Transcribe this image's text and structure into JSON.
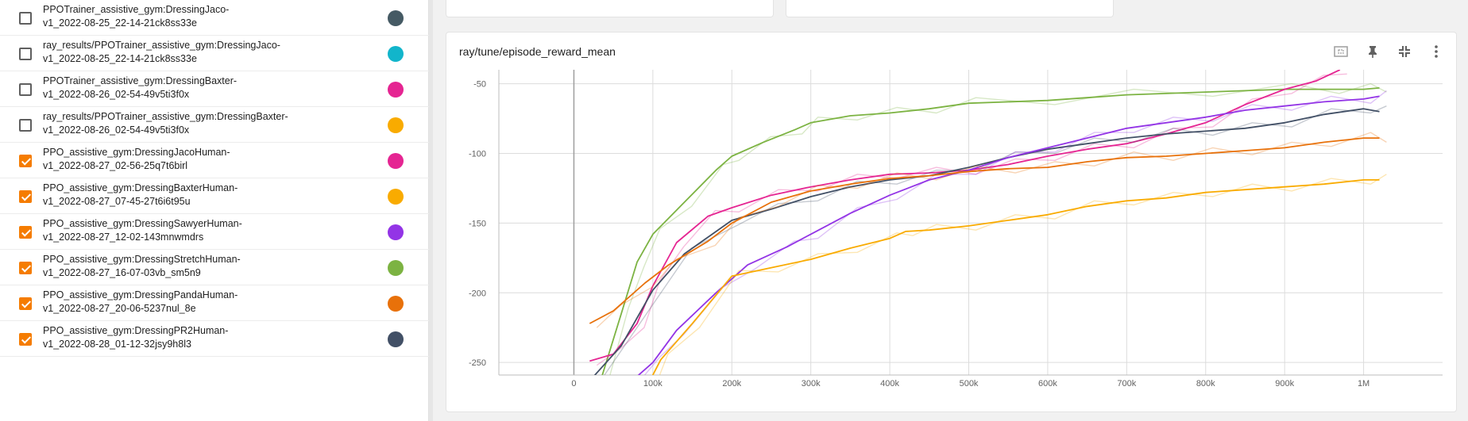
{
  "sidebar": {
    "runs": [
      {
        "name": "PPOTrainer_assistive_gym:DressingJaco-v1_2022-08-25_22-14-21ck8ss33e",
        "line1": "PPOTrainer_assistive_gym:DressingJaco-",
        "line2": "v1_2022-08-25_22-14-21ck8ss33e",
        "checked": false,
        "color": "#455a64"
      },
      {
        "name": "ray_results/PPOTrainer_assistive_gym:DressingJaco-v1_2022-08-25_22-14-21ck8ss33e",
        "line1": "ray_results/PPOTrainer_assistive_gym:DressingJaco-",
        "line2": "v1_2022-08-25_22-14-21ck8ss33e",
        "checked": false,
        "color": "#12b5cb"
      },
      {
        "name": "PPOTrainer_assistive_gym:DressingBaxter-v1_2022-08-26_02-54-49v5ti3f0x",
        "line1": "PPOTrainer_assistive_gym:DressingBaxter-",
        "line2": "v1_2022-08-26_02-54-49v5ti3f0x",
        "checked": false,
        "color": "#e52592"
      },
      {
        "name": "ray_results/PPOTrainer_assistive_gym:DressingBaxter-v1_2022-08-26_02-54-49v5ti3f0x",
        "line1": "ray_results/PPOTrainer_assistive_gym:DressingBaxter-",
        "line2": "v1_2022-08-26_02-54-49v5ti3f0x",
        "checked": false,
        "color": "#f9ab00"
      },
      {
        "name": "PPO_assistive_gym:DressingJacoHuman-v1_2022-08-27_02-56-25q7t6birl",
        "line1": "PPO_assistive_gym:DressingJacoHuman-",
        "line2": "v1_2022-08-27_02-56-25q7t6birl",
        "checked": true,
        "color": "#e52592"
      },
      {
        "name": "PPO_assistive_gym:DressingBaxterHuman-v1_2022-08-27_07-45-27t6i6t95u",
        "line1": "PPO_assistive_gym:DressingBaxterHuman-",
        "line2": "v1_2022-08-27_07-45-27t6i6t95u",
        "checked": true,
        "color": "#f9ab00"
      },
      {
        "name": "PPO_assistive_gym:DressingSawyerHuman-v1_2022-08-27_12-02-143mnwmdrs",
        "line1": "PPO_assistive_gym:DressingSawyerHuman-",
        "line2": "v1_2022-08-27_12-02-143mnwmdrs",
        "checked": true,
        "color": "#9334e6"
      },
      {
        "name": "PPO_assistive_gym:DressingStretchHuman-v1_2022-08-27_16-07-03vb_sm5n9",
        "line1": "PPO_assistive_gym:DressingStretchHuman-",
        "line2": "v1_2022-08-27_16-07-03vb_sm5n9",
        "checked": true,
        "color": "#7cb342"
      },
      {
        "name": "PPO_assistive_gym:DressingPandaHuman-v1_2022-08-27_20-06-5237nul_8e",
        "line1": "PPO_assistive_gym:DressingPandaHuman-",
        "line2": "v1_2022-08-27_20-06-5237nul_8e",
        "checked": true,
        "color": "#e8710a"
      },
      {
        "name": "PPO_assistive_gym:DressingPR2Human-v1_2022-08-28_01-12-32jsy9h8l3",
        "line1": "PPO_assistive_gym:DressingPR2Human-",
        "line2": "v1_2022-08-28_01-12-32jsy9h8l3",
        "checked": true,
        "color": "#425066"
      }
    ]
  },
  "card": {
    "title": "ray/tune/episode_reward_mean",
    "toolbar": {
      "fit_icon": "fit-domain-icon",
      "pin_icon": "pin-icon",
      "collapse_icon": "collapse-icon",
      "menu_icon": "more-vert-icon"
    }
  },
  "chart_data": {
    "type": "line",
    "title": "ray/tune/episode_reward_mean",
    "xlabel": "",
    "ylabel": "",
    "x_ticks": [
      0,
      100000,
      200000,
      300000,
      400000,
      500000,
      600000,
      700000,
      800000,
      900000,
      1000000
    ],
    "x_tick_labels": [
      "0",
      "100k",
      "200k",
      "300k",
      "400k",
      "500k",
      "600k",
      "700k",
      "800k",
      "900k",
      "1M"
    ],
    "y_ticks": [
      -250,
      -200,
      -150,
      -100,
      -50
    ],
    "y_tick_labels": [
      "-250",
      "-200",
      "-150",
      "-100",
      "-50"
    ],
    "xlim": [
      -95000,
      1100000
    ],
    "ylim": [
      -259,
      -40
    ],
    "grid": true,
    "series": [
      {
        "run": "PPO_assistive_gym:DressingStretchHuman-v1_2022-08-27_16-07-03vb_sm5n9",
        "color": "#7cb342",
        "x": [
          30000,
          60000,
          80000,
          100000,
          140000,
          180000,
          200000,
          240000,
          280000,
          300000,
          350000,
          400000,
          450000,
          500000,
          600000,
          700000,
          800000,
          900000,
          960000,
          1000000,
          1020000
        ],
        "y": [
          -270,
          -215,
          -178,
          -158,
          -135,
          -112,
          -102,
          -92,
          -83,
          -78,
          -73,
          -71,
          -68,
          -64,
          -62,
          -58,
          -56,
          -54,
          -54,
          -54,
          -53
        ]
      },
      {
        "run": "PPO_assistive_gym:DressingJacoHuman-v1_2022-08-27_02-56-25q7t6birl",
        "color": "#e52592",
        "x": [
          20000,
          50000,
          80000,
          100000,
          130000,
          170000,
          200000,
          250000,
          300000,
          350000,
          400000,
          450000,
          500000,
          550000,
          600000,
          650000,
          700000,
          750000,
          800000,
          850000,
          900000,
          940000,
          970000
        ],
        "y": [
          -249,
          -244,
          -222,
          -195,
          -164,
          -145,
          -139,
          -130,
          -124,
          -119,
          -115,
          -114,
          -112,
          -108,
          -102,
          -97,
          -93,
          -86,
          -78,
          -65,
          -54,
          -48,
          -40
        ]
      },
      {
        "run": "PPO_assistive_gym:DressingPR2Human-v1_2022-08-28_01-12-32jsy9h8l3",
        "color": "#425066",
        "x": [
          25000,
          60000,
          100000,
          140000,
          200000,
          250000,
          300000,
          350000,
          400000,
          450000,
          500000,
          550000,
          600000,
          650000,
          700000,
          750000,
          800000,
          850000,
          900000,
          950000,
          1000000,
          1020000
        ],
        "y": [
          -260,
          -238,
          -198,
          -172,
          -148,
          -140,
          -131,
          -124,
          -119,
          -116,
          -110,
          -103,
          -97,
          -93,
          -89,
          -86,
          -84,
          -82,
          -78,
          -72,
          -68,
          -70
        ]
      },
      {
        "run": "PPO_assistive_gym:DressingSawyerHuman-v1_2022-08-27_12-02-143mnwmdrs",
        "color": "#9334e6",
        "x": [
          60000,
          100000,
          130000,
          180000,
          220000,
          270000,
          300000,
          350000,
          400000,
          450000,
          500000,
          550000,
          600000,
          650000,
          700000,
          750000,
          800000,
          850000,
          900000,
          950000,
          1000000,
          1020000
        ],
        "y": [
          -270,
          -250,
          -227,
          -200,
          -180,
          -167,
          -158,
          -143,
          -130,
          -119,
          -112,
          -103,
          -96,
          -89,
          -82,
          -78,
          -74,
          -69,
          -66,
          -63,
          -61,
          -59
        ]
      },
      {
        "run": "PPO_assistive_gym:DressingPandaHuman-v1_2022-08-27_20-06-5237nul_8e",
        "color": "#e8710a",
        "x": [
          20000,
          50000,
          90000,
          120000,
          170000,
          200000,
          250000,
          300000,
          350000,
          400000,
          450000,
          500000,
          550000,
          600000,
          650000,
          700000,
          750000,
          800000,
          850000,
          900000,
          950000,
          1000000,
          1020000
        ],
        "y": [
          -222,
          -213,
          -193,
          -180,
          -163,
          -150,
          -135,
          -127,
          -122,
          -118,
          -116,
          -113,
          -111,
          -110,
          -106,
          -103,
          -102,
          -100,
          -98,
          -96,
          -92,
          -89,
          -89
        ]
      },
      {
        "run": "PPO_assistive_gym:DressingBaxterHuman-v1_2022-08-27_07-45-27t6i6t95u",
        "color": "#f9ab00",
        "x": [
          90000,
          110000,
          150000,
          200000,
          250000,
          300000,
          350000,
          400000,
          420000,
          450000,
          500000,
          550000,
          600000,
          650000,
          700000,
          750000,
          800000,
          850000,
          900000,
          950000,
          1000000,
          1020000
        ],
        "y": [
          -270,
          -248,
          -222,
          -188,
          -182,
          -176,
          -168,
          -161,
          -156,
          -155,
          -152,
          -148,
          -144,
          -138,
          -134,
          -132,
          -128,
          -126,
          -124,
          -122,
          -119,
          -119
        ]
      }
    ]
  }
}
